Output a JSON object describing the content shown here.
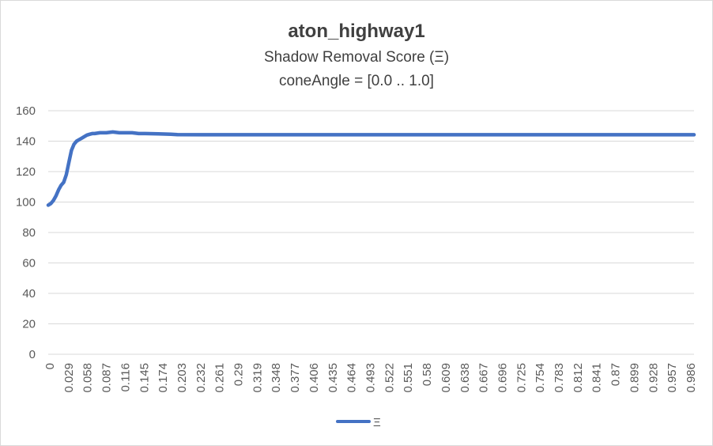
{
  "chart_data": {
    "type": "line",
    "title": "aton_highway1",
    "subtitle_lines": [
      "Shadow Removal Score (Ξ)",
      "coneAngle = [0.0 .. 1.0]"
    ],
    "xlabel": "",
    "ylabel": "",
    "ylim": [
      0,
      160
    ],
    "y_ticks": [
      "0",
      "20",
      "40",
      "60",
      "80",
      "100",
      "120",
      "140",
      "160"
    ],
    "xlim": [
      0,
      1.0
    ],
    "x_tick_labels": [
      "0",
      "0.029",
      "0.058",
      "0.087",
      "0.116",
      "0.145",
      "0.174",
      "0.203",
      "0.232",
      "0.261",
      "0.29",
      "0.319",
      "0.348",
      "0.377",
      "0.406",
      "0.435",
      "0.464",
      "0.493",
      "0.522",
      "0.551",
      "0.58",
      "0.609",
      "0.638",
      "0.667",
      "0.696",
      "0.725",
      "0.754",
      "0.783",
      "0.812",
      "0.841",
      "0.87",
      "0.899",
      "0.928",
      "0.957",
      "0.986"
    ],
    "grid": true,
    "legend_position": "bottom",
    "series": [
      {
        "name": "Ξ",
        "color": "#4472c4",
        "x": [
          0,
          0.004,
          0.008,
          0.012,
          0.016,
          0.02,
          0.024,
          0.028,
          0.032,
          0.036,
          0.04,
          0.044,
          0.048,
          0.052,
          0.056,
          0.06,
          0.064,
          0.068,
          0.072,
          0.08,
          0.09,
          0.1,
          0.11,
          0.12,
          0.13,
          0.14,
          0.15,
          0.17,
          0.19,
          0.2,
          0.25,
          0.3,
          0.4,
          0.5,
          0.6,
          0.7,
          0.8,
          0.9,
          1.0
        ],
        "y": [
          98,
          99,
          101,
          104,
          108,
          111,
          113,
          118,
          126,
          134,
          138,
          140,
          141,
          142,
          143,
          144,
          144.5,
          145,
          145,
          145.5,
          145.5,
          146,
          145.5,
          145.5,
          145.5,
          145,
          145,
          144.8,
          144.5,
          144.3,
          144.2,
          144.2,
          144.2,
          144.2,
          144.2,
          144.2,
          144.2,
          144.2,
          144.2
        ]
      }
    ]
  }
}
